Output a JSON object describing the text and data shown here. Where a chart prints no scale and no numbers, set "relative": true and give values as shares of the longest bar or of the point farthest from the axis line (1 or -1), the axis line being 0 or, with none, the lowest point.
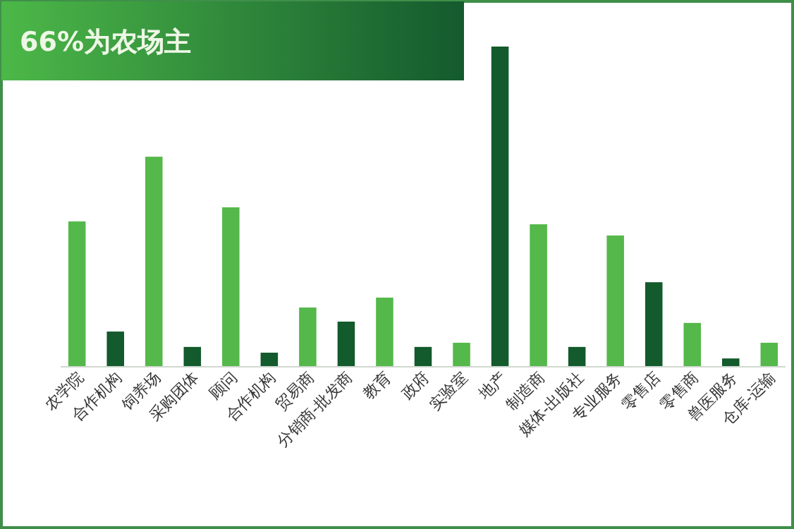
{
  "chart_data": {
    "type": "bar",
    "title": "66%为农场主",
    "relative": true,
    "categories": [
      "农学院",
      "合作机构",
      "饲养场",
      "采购团体",
      "顾问",
      "合作机构",
      "贸易商",
      "分销商-批发商",
      "教育",
      "政府",
      "实验室",
      "地产",
      "制造商",
      "媒体-出版社",
      "专业服务",
      "零售店",
      "零售商",
      "兽医服务",
      "仓库-运输"
    ],
    "values": [
      0.454,
      0.11,
      0.656,
      0.062,
      0.498,
      0.044,
      0.185,
      0.141,
      0.216,
      0.062,
      0.075,
      1,
      0.445,
      0.062,
      0.41,
      0.264,
      0.137,
      0.026,
      0.075
    ],
    "colors": [
      "#55b84a",
      "#135a2c",
      "#55b84a",
      "#135a2c",
      "#55b84a",
      "#135a2c",
      "#55b84a",
      "#135a2c",
      "#55b84a",
      "#135a2c",
      "#55b84a",
      "#135a2c",
      "#55b84a",
      "#135a2c",
      "#55b84a",
      "#135a2c",
      "#55b84a",
      "#135a2c",
      "#55b84a"
    ],
    "data_labels": false
  }
}
